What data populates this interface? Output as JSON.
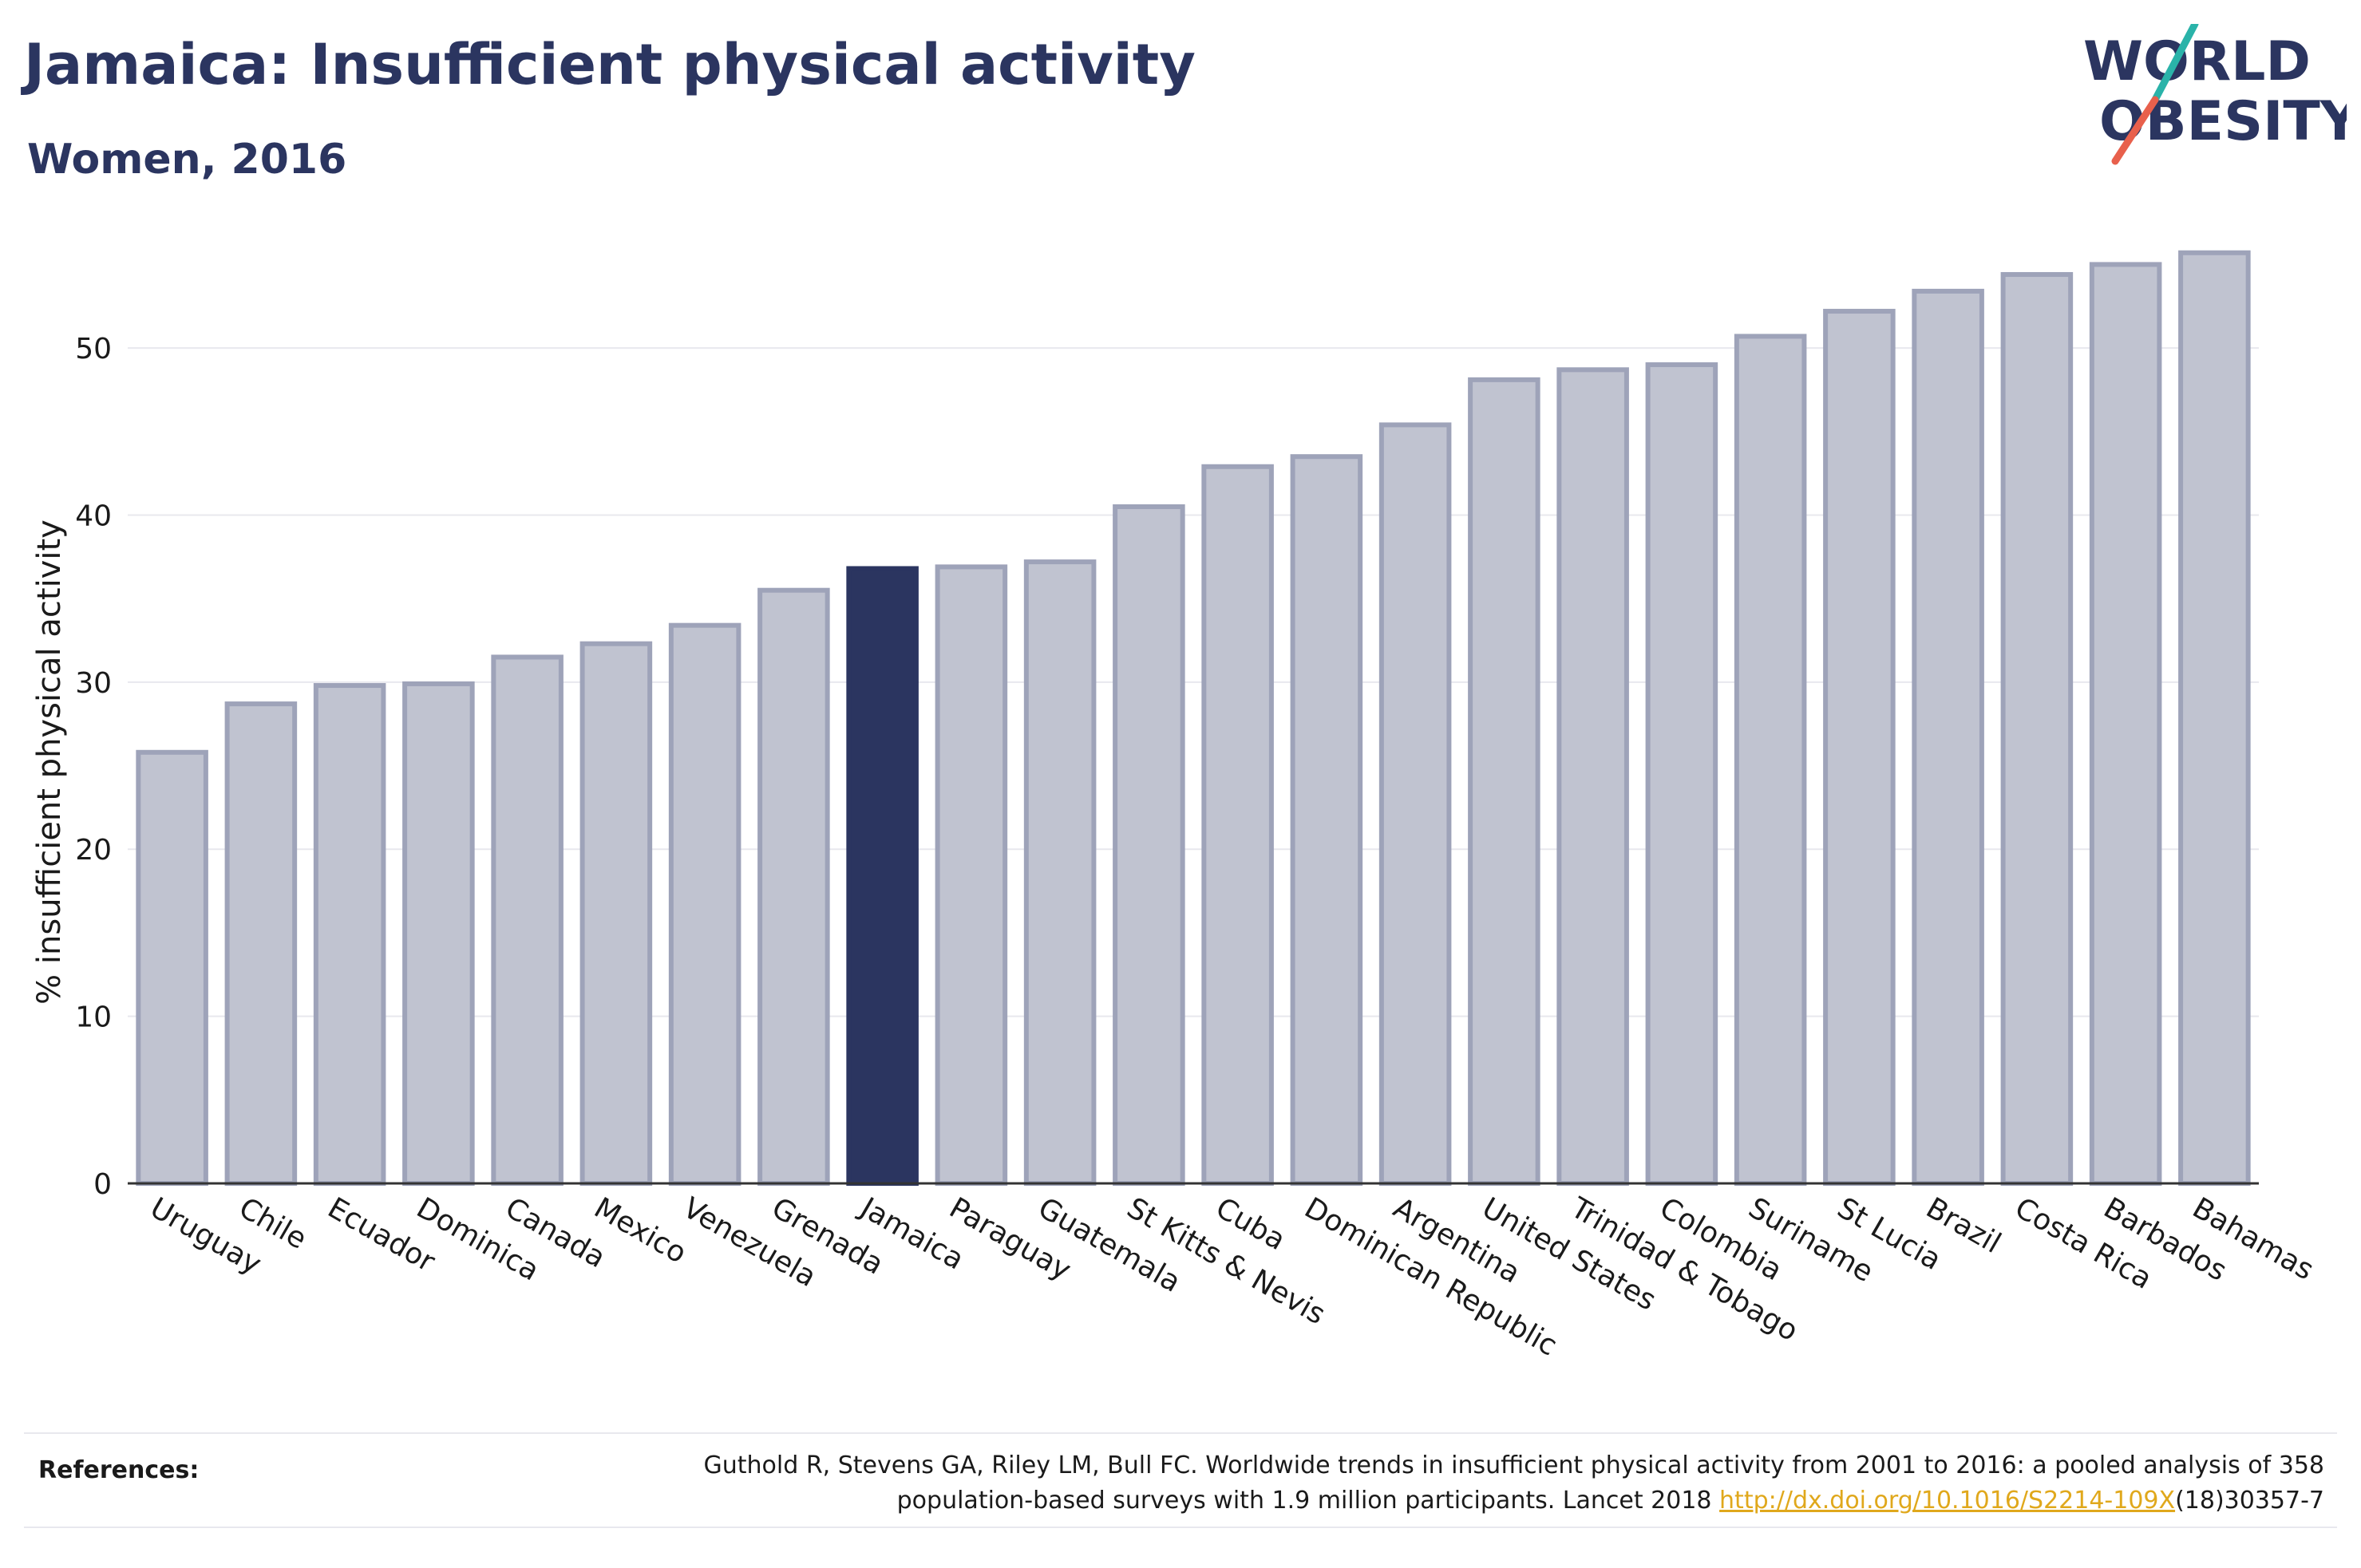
{
  "header": {
    "title": "Jamaica: Insufficient physical activity",
    "subtitle": "Women, 2016"
  },
  "logo": {
    "line1": "WORLD",
    "line2": "OBESITY",
    "colors": {
      "text": "#2b3560",
      "slash_top": "#2ab3a9",
      "slash_bottom": "#e8604c"
    }
  },
  "chart_data": {
    "type": "bar",
    "ylabel": "% insufficient physical activity",
    "xlabel": "",
    "ylim": [
      0,
      56.5
    ],
    "yticks": [
      0,
      10,
      20,
      30,
      40,
      50
    ],
    "grid": true,
    "highlight": "Jamaica",
    "colors": {
      "bar": "#c0c3d0",
      "bar_edge": "#9ea3b9",
      "highlight": "#2b3560",
      "grid": "#e8e8ee",
      "axis": "#333333"
    },
    "categories": [
      "Uruguay",
      "Chile",
      "Ecuador",
      "Dominica",
      "Canada",
      "Mexico",
      "Venezuela",
      "Grenada",
      "Jamaica",
      "Paraguay",
      "Guatemala",
      "St Kitts & Nevis",
      "Cuba",
      "Dominican Republic",
      "Argentina",
      "United States",
      "Trinidad & Tobago",
      "Colombia",
      "Suriname",
      "St Lucia",
      "Brazil",
      "Costa Rica",
      "Barbados",
      "Bahamas"
    ],
    "values": [
      25.8,
      28.7,
      29.8,
      29.9,
      31.5,
      32.3,
      33.4,
      35.5,
      36.8,
      36.9,
      37.2,
      40.5,
      42.9,
      43.5,
      45.4,
      48.1,
      48.7,
      49.0,
      50.7,
      52.2,
      53.4,
      54.4,
      55.0,
      55.7
    ]
  },
  "references": {
    "label": "References:",
    "text_line1": "Guthold R, Stevens GA, Riley LM, Bull FC. Worldwide trends in insufficient physical activity from 2001 to 2016: a pooled analysis of 358",
    "text_line2_pre": "population-based surveys with 1.9 million participants. Lancet 2018 ",
    "link": "http://dx.doi.org/10.1016/S2214-109X",
    "text_line2_post": "(18)30357-7"
  }
}
